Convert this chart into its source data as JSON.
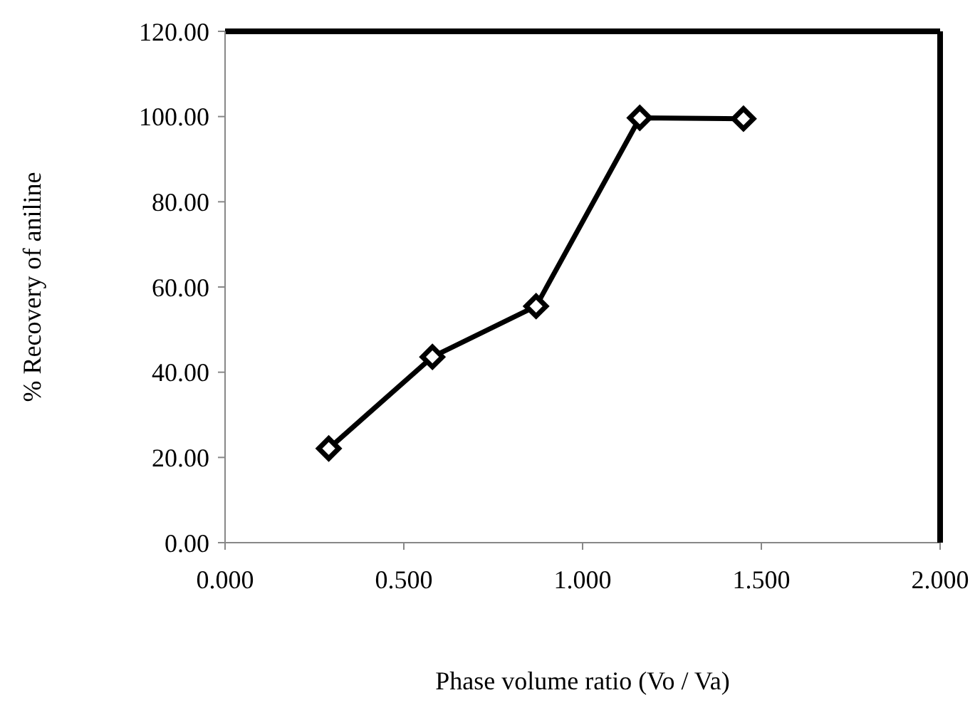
{
  "chart_data": {
    "type": "line",
    "xlabel": "Phase volume ratio (Vo / Va)",
    "ylabel": "%  Recovery of aniline",
    "x": [
      0.29,
      0.58,
      0.87,
      1.16,
      1.45
    ],
    "series": [
      {
        "color": "#000000",
        "values": [
          22.1,
          43.6,
          55.5,
          99.7,
          99.5
        ]
      }
    ],
    "xlim": [
      0,
      2
    ],
    "xticks": [
      {
        "value": 0,
        "label": "0.000"
      },
      {
        "value": 0.5,
        "label": "0.500"
      },
      {
        "value": 1,
        "label": "1.000"
      },
      {
        "value": 1.5,
        "label": "1.500"
      },
      {
        "value": 2,
        "label": "2.000"
      }
    ],
    "ylim": [
      0,
      120
    ],
    "yticks": [
      {
        "value": 0,
        "label": "0.00"
      },
      {
        "value": 20,
        "label": "20.00"
      },
      {
        "value": 40,
        "label": "40.00"
      },
      {
        "value": 60,
        "label": "60.00"
      },
      {
        "value": 80,
        "label": "80.00"
      },
      {
        "value": 100,
        "label": "100.00"
      },
      {
        "value": 120,
        "label": "120.00"
      }
    ],
    "grid": false,
    "legend": false,
    "marker": "diamond",
    "line_style": "solid"
  }
}
